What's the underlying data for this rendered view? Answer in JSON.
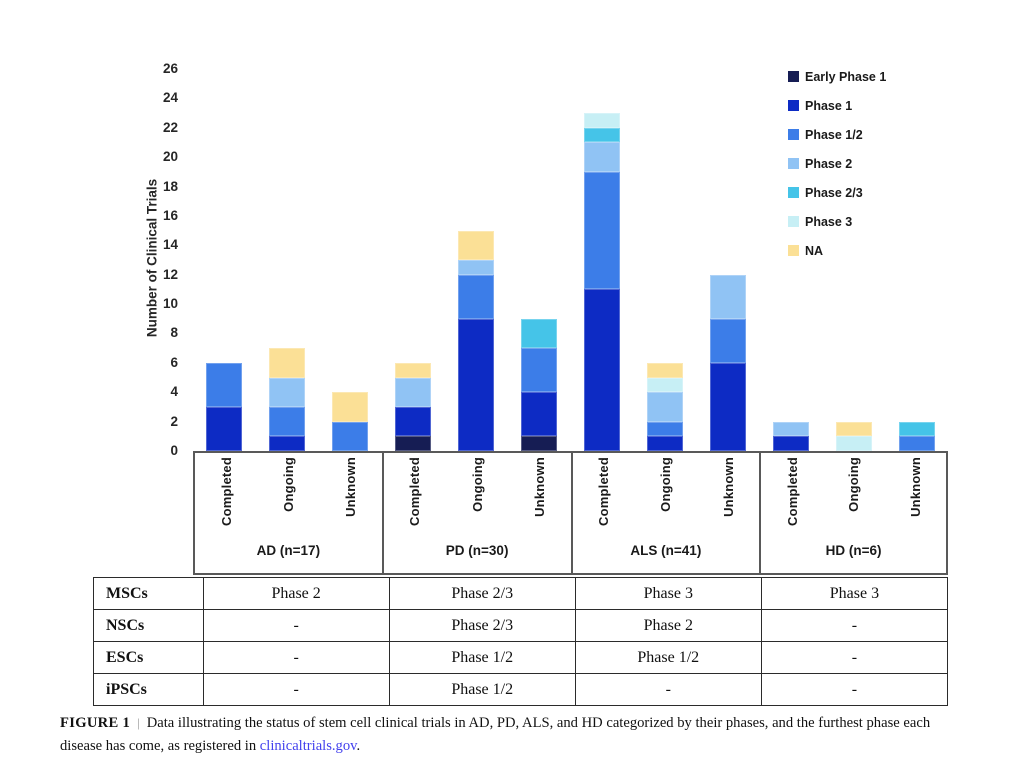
{
  "chart_data": {
    "type": "bar",
    "stacked": true,
    "ylabel": "Number of Clinical Trials",
    "ylim": [
      0,
      26
    ],
    "ytick_step": 2,
    "grid": false,
    "legend_position": "top-right",
    "axis_color": "#595959",
    "groups": [
      {
        "label": "AD (n=17)",
        "statuses": [
          "Completed",
          "Ongoing",
          "Unknown"
        ]
      },
      {
        "label": "PD (n=30)",
        "statuses": [
          "Completed",
          "Ongoing",
          "Unknown"
        ]
      },
      {
        "label": "ALS (n=41)",
        "statuses": [
          "Completed",
          "Ongoing",
          "Unknown"
        ]
      },
      {
        "label": "HD (n=6)",
        "statuses": [
          "Completed",
          "Ongoing",
          "Unknown"
        ]
      }
    ],
    "bar_order_note": "values arrays hold 12 bars: AD-Completed, AD-Ongoing, AD-Unknown, PD-Completed, PD-Ongoing, PD-Unknown, ALS-Completed, ALS-Ongoing, ALS-Unknown, HD-Completed, HD-Ongoing, HD-Unknown; series stack bottom-to-top in listed order",
    "series": [
      {
        "name": "Early Phase 1",
        "color": "#161d54",
        "values": [
          0,
          0,
          0,
          1,
          0,
          1,
          0,
          0,
          0,
          0,
          0,
          0
        ]
      },
      {
        "name": "Phase 1",
        "color": "#0d2bc4",
        "values": [
          3,
          1,
          0,
          2,
          9,
          3,
          11,
          1,
          6,
          1,
          0,
          0
        ]
      },
      {
        "name": "Phase 1/2",
        "color": "#3c7de8",
        "values": [
          3,
          2,
          2,
          0,
          3,
          3,
          8,
          1,
          3,
          0,
          0,
          1
        ]
      },
      {
        "name": "Phase 2",
        "color": "#90c3f4",
        "values": [
          0,
          2,
          0,
          2,
          1,
          0,
          2,
          2,
          3,
          1,
          0,
          0
        ]
      },
      {
        "name": "Phase 2/3",
        "color": "#45c4e8",
        "values": [
          0,
          0,
          0,
          0,
          0,
          2,
          1,
          0,
          0,
          0,
          0,
          1
        ]
      },
      {
        "name": "Phase 3",
        "color": "#c7eff5",
        "values": [
          0,
          0,
          0,
          0,
          0,
          0,
          1,
          1,
          0,
          0,
          1,
          0
        ]
      },
      {
        "name": "NA",
        "color": "#fbe096",
        "values": [
          0,
          2,
          2,
          1,
          2,
          0,
          0,
          1,
          0,
          0,
          1,
          0
        ]
      }
    ],
    "bar_totals": [
      6,
      7,
      4,
      6,
      15,
      9,
      23,
      6,
      12,
      2,
      2,
      2
    ]
  },
  "table": {
    "rows": [
      {
        "header": "MSCs",
        "cells": [
          "Phase 2",
          "Phase 2/3",
          "Phase 3",
          "Phase 3"
        ]
      },
      {
        "header": "NSCs",
        "cells": [
          "-",
          "Phase 2/3",
          "Phase 2",
          "-"
        ]
      },
      {
        "header": "ESCs",
        "cells": [
          "-",
          "Phase 1/2",
          "Phase 1/2",
          "-"
        ]
      },
      {
        "header": "iPSCs",
        "cells": [
          "-",
          "Phase 1/2",
          "-",
          "-"
        ]
      }
    ]
  },
  "caption": {
    "label": "FIGURE 1",
    "separator": "|",
    "text_before_link": "Data illustrating the status of stem cell clinical trials in AD, PD, ALS, and HD categorized by their phases, and the furthest phase each disease has come, as registered in ",
    "link_text": "clinicaltrials.gov",
    "suffix": ".",
    "link_color": "#4341ee"
  }
}
